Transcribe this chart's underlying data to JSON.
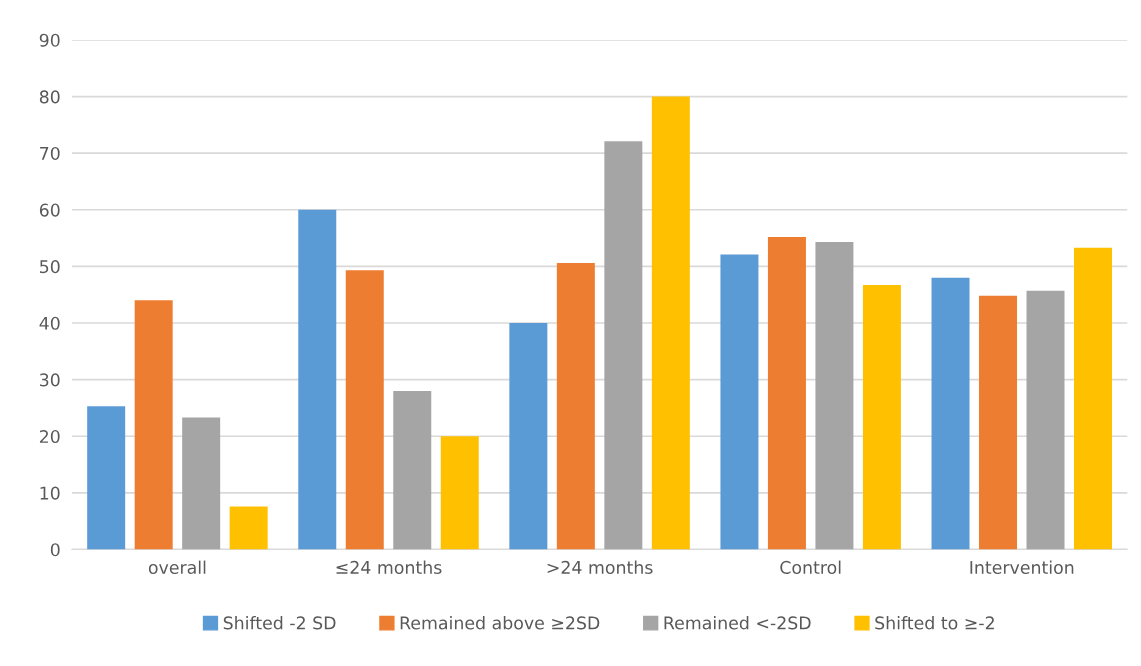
{
  "chart_data": {
    "type": "bar",
    "categories": [
      "overall",
      "≤24 months",
      ">24 months",
      "Control",
      "Intervention"
    ],
    "series": [
      {
        "name": "Shifted -2 SD",
        "color": "#5b9bd5",
        "values": [
          25.3,
          60,
          40,
          52.1,
          48
        ]
      },
      {
        "name": "Remained above ≥2SD",
        "color": "#ed7d31",
        "values": [
          44,
          49.3,
          50.6,
          55.2,
          44.8
        ]
      },
      {
        "name": "Remained <-2SD",
        "color": "#a5a5a5",
        "values": [
          23.3,
          28,
          72.1,
          54.3,
          45.7
        ]
      },
      {
        "name": "Shifted to ≥-2",
        "color": "#ffc000",
        "values": [
          7.6,
          20,
          80,
          46.7,
          53.3
        ]
      }
    ],
    "ylim": [
      0,
      90
    ],
    "yticks": [
      0,
      10,
      20,
      30,
      40,
      50,
      60,
      70,
      80,
      90
    ],
    "grid": "y",
    "legend": "bottom"
  }
}
